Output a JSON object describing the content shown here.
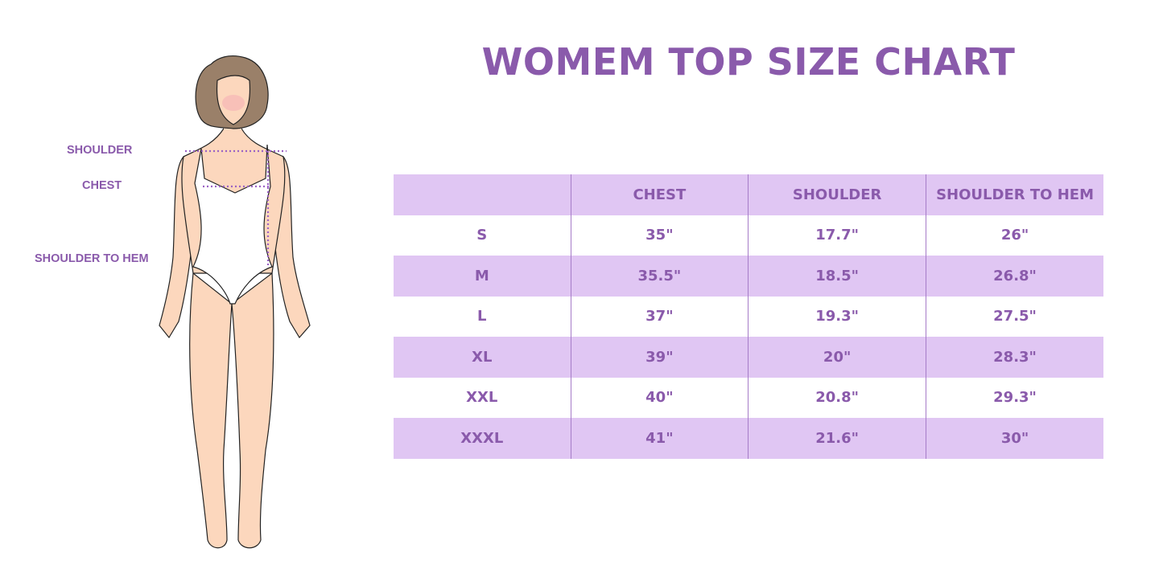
{
  "title": "WOMEM TOP SIZE CHART",
  "figure_labels": {
    "shoulder": "SHOULDER",
    "chest": "CHEST",
    "shoulder_to_hem": "SHOULDER TO HEM"
  },
  "colors": {
    "accent": "#8a5aab",
    "band": "#e0c6f3",
    "divider": "#a67cc8"
  },
  "table": {
    "headers": [
      "",
      "CHEST",
      "SHOULDER",
      "SHOULDER TO HEM"
    ],
    "rows": [
      [
        "S",
        "35\"",
        "17.7\"",
        "26\""
      ],
      [
        "M",
        "35.5\"",
        "18.5\"",
        "26.8\""
      ],
      [
        "L",
        "37\"",
        "19.3\"",
        "27.5\""
      ],
      [
        "XL",
        "39\"",
        "20\"",
        "28.3\""
      ],
      [
        "XXL",
        "40\"",
        "20.8\"",
        "29.3\""
      ],
      [
        "XXXL",
        "41\"",
        "21.6\"",
        "30\""
      ]
    ]
  }
}
